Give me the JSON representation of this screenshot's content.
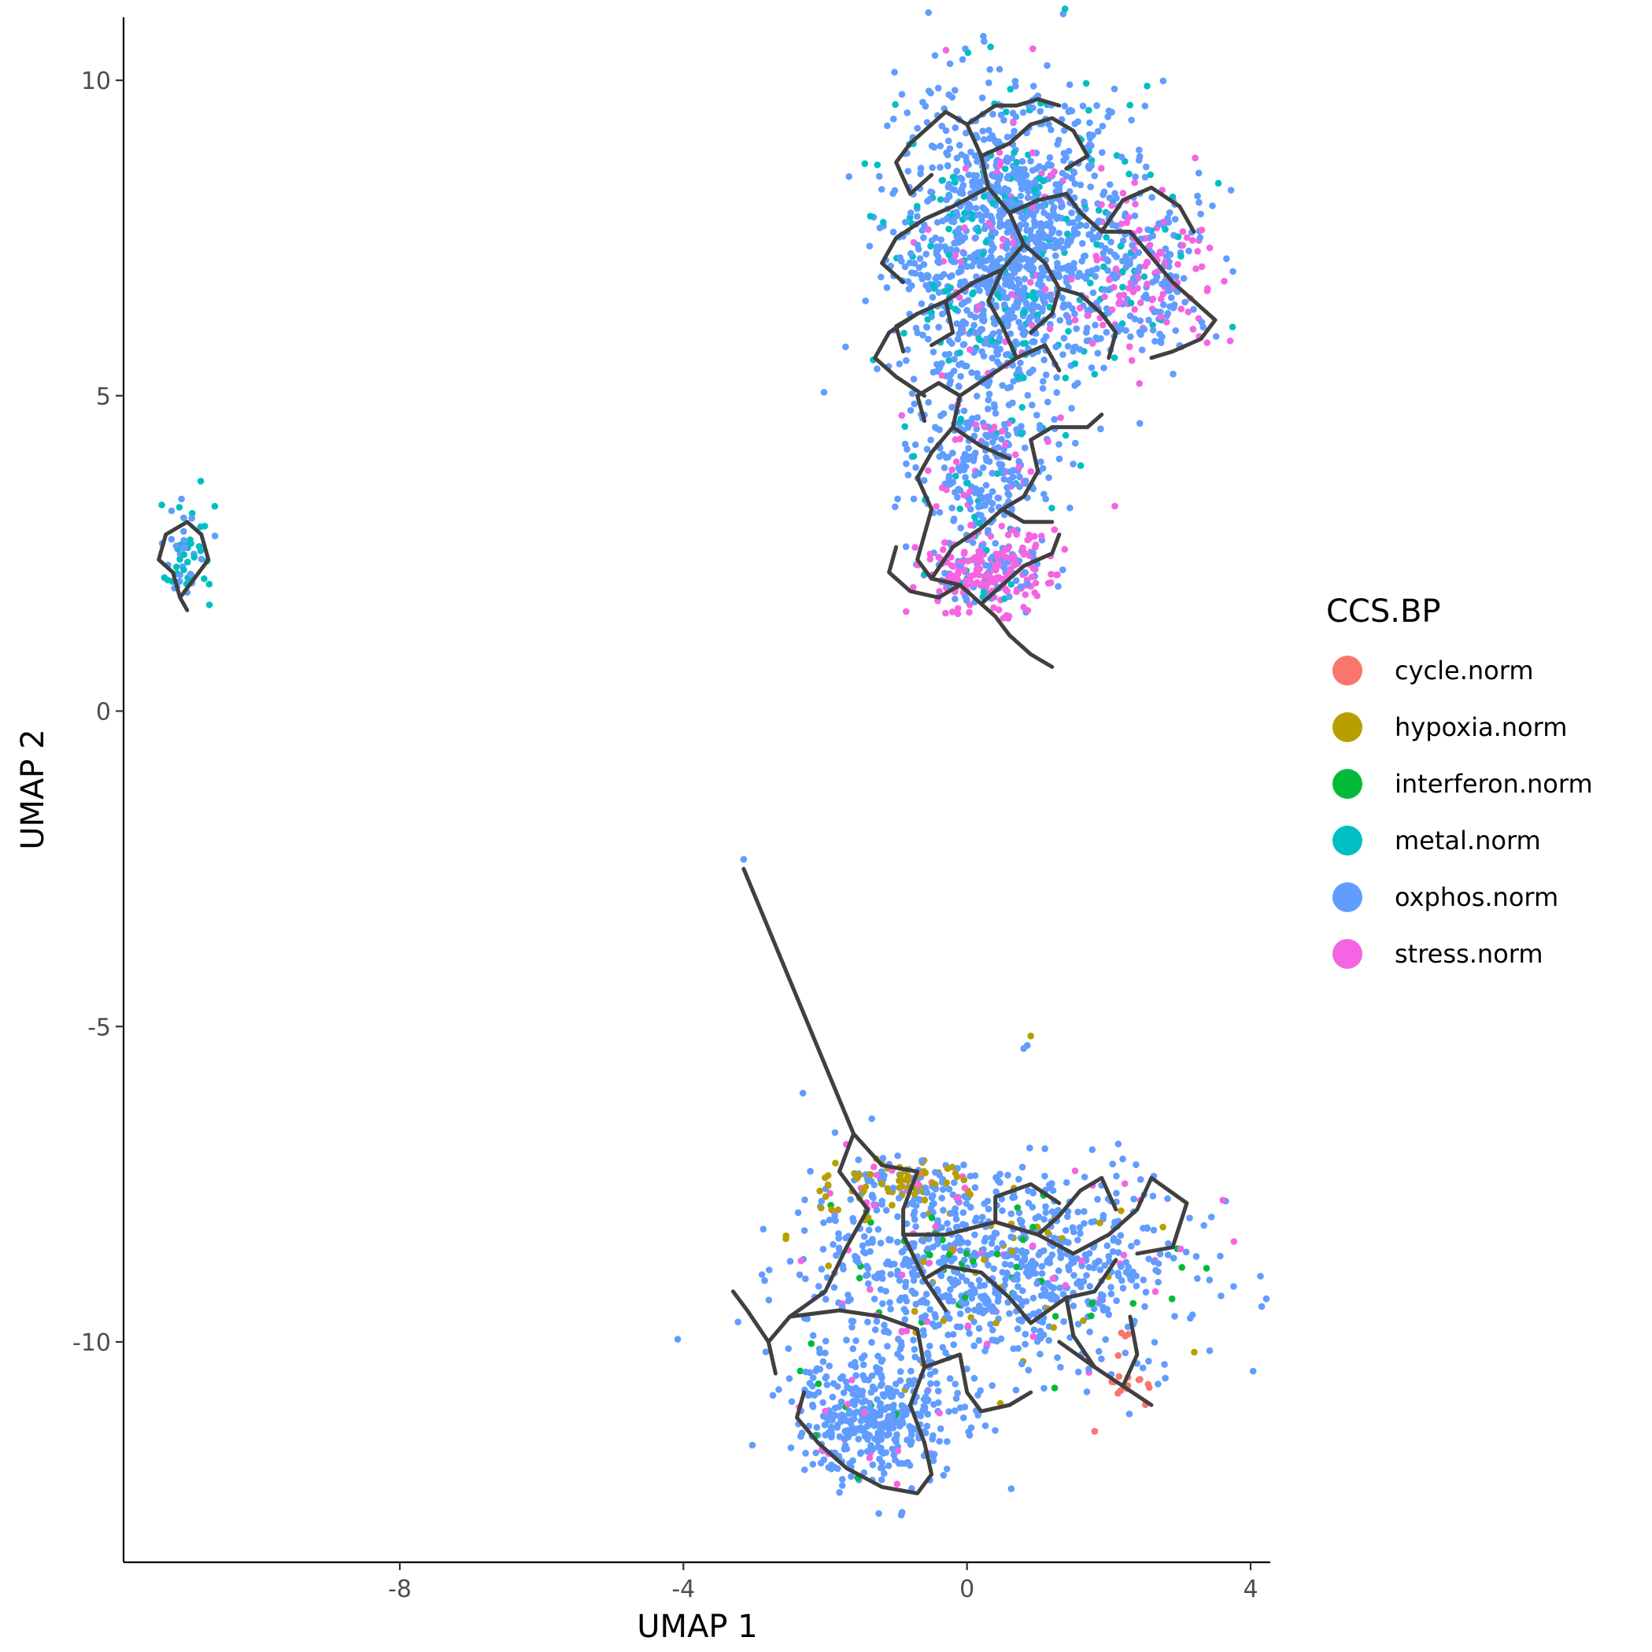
{
  "chart_data": {
    "type": "scatter",
    "title": "",
    "xlabel": "UMAP 1",
    "ylabel": "UMAP 2",
    "xlim": [
      -11.9,
      4.3
    ],
    "ylim": [
      -13.5,
      11
    ],
    "xticks": [
      -8,
      -4,
      0,
      4
    ],
    "xtick_labels": [
      "-8",
      "-4",
      "0",
      "4"
    ],
    "yticks": [
      -10,
      -5,
      0,
      5,
      10
    ],
    "ytick_labels": [
      "-10",
      "-5",
      "0",
      "5",
      "10"
    ],
    "legend": {
      "title": "CCS.BP",
      "position": "right",
      "entries": [
        {
          "name": "cycle.norm",
          "color": "#F8766D"
        },
        {
          "name": "hypoxia.norm",
          "color": "#B79F00"
        },
        {
          "name": "interferon.norm",
          "color": "#00BA38"
        },
        {
          "name": "metal.norm",
          "color": "#00BFC4"
        },
        {
          "name": "oxphos.norm",
          "color": "#619CFF"
        },
        {
          "name": "stress.norm",
          "color": "#F564E3"
        }
      ]
    },
    "trajectory_color": "#404040",
    "clusters": [
      {
        "name": "small-left",
        "center": [
          -11.0,
          2.5
        ],
        "rx": 0.35,
        "ry": 0.7,
        "n": 60,
        "mix": {
          "oxphos.norm": 0.45,
          "metal.norm": 0.55
        }
      },
      {
        "name": "upper-main",
        "center": [
          0.6,
          7.3
        ],
        "rx": 1.4,
        "ry": 2.4,
        "n": 1400,
        "mix": {
          "oxphos.norm": 0.82,
          "metal.norm": 0.12,
          "stress.norm": 0.06
        }
      },
      {
        "name": "upper-right-lobe",
        "center": [
          2.6,
          7.0
        ],
        "rx": 0.9,
        "ry": 1.2,
        "n": 260,
        "mix": {
          "oxphos.norm": 0.55,
          "stress.norm": 0.35,
          "metal.norm": 0.1
        }
      },
      {
        "name": "upper-neck",
        "center": [
          0.2,
          3.8
        ],
        "rx": 0.8,
        "ry": 1.1,
        "n": 260,
        "mix": {
          "oxphos.norm": 0.8,
          "stress.norm": 0.12,
          "metal.norm": 0.08
        }
      },
      {
        "name": "upper-bottom-stress",
        "center": [
          0.3,
          2.2
        ],
        "rx": 0.9,
        "ry": 0.55,
        "n": 260,
        "mix": {
          "stress.norm": 0.7,
          "oxphos.norm": 0.25,
          "metal.norm": 0.05
        }
      },
      {
        "name": "lower-main",
        "center": [
          0.3,
          -8.8
        ],
        "rx": 2.4,
        "ry": 1.4,
        "n": 900,
        "mix": {
          "oxphos.norm": 0.86,
          "hypoxia.norm": 0.05,
          "stress.norm": 0.05,
          "interferon.norm": 0.04
        }
      },
      {
        "name": "lower-top-hypoxia",
        "center": [
          -1.0,
          -7.5
        ],
        "rx": 0.9,
        "ry": 0.4,
        "n": 120,
        "mix": {
          "hypoxia.norm": 0.55,
          "oxphos.norm": 0.35,
          "stress.norm": 0.1
        }
      },
      {
        "name": "lower-left-bottom",
        "center": [
          -1.3,
          -11.2
        ],
        "rx": 1.1,
        "ry": 0.9,
        "n": 420,
        "mix": {
          "oxphos.norm": 0.94,
          "stress.norm": 0.03,
          "interferon.norm": 0.03
        }
      },
      {
        "name": "lower-right-cycle",
        "center": [
          2.3,
          -10.5
        ],
        "rx": 0.4,
        "ry": 0.6,
        "n": 25,
        "mix": {
          "cycle.norm": 0.7,
          "oxphos.norm": 0.3
        }
      }
    ],
    "trajectories": [
      [
        [
          -3.15,
          -2.5
        ],
        [
          -1.6,
          -6.7
        ],
        [
          -1.2,
          -7.2
        ],
        [
          -0.7,
          -7.3
        ]
      ],
      [
        [
          -1.6,
          -6.7
        ],
        [
          -1.8,
          -7.3
        ],
        [
          -1.4,
          -7.9
        ],
        [
          -1.7,
          -8.5
        ],
        [
          -2.0,
          -9.2
        ]
      ],
      [
        [
          -0.7,
          -7.3
        ],
        [
          -0.9,
          -7.9
        ],
        [
          -0.9,
          -8.3
        ],
        [
          -0.6,
          -9.0
        ],
        [
          -0.3,
          -9.5
        ]
      ],
      [
        [
          -0.9,
          -8.3
        ],
        [
          -0.3,
          -8.3
        ],
        [
          0.4,
          -8.1
        ],
        [
          1.0,
          -8.3
        ],
        [
          1.5,
          -8.6
        ]
      ],
      [
        [
          0.4,
          -8.1
        ],
        [
          0.4,
          -7.7
        ],
        [
          0.9,
          -7.5
        ],
        [
          1.3,
          -7.8
        ]
      ],
      [
        [
          1.5,
          -8.6
        ],
        [
          2.0,
          -8.3
        ],
        [
          2.4,
          -7.9
        ],
        [
          2.6,
          -7.4
        ],
        [
          3.1,
          -7.8
        ],
        [
          2.9,
          -8.5
        ],
        [
          2.4,
          -8.6
        ]
      ],
      [
        [
          1.0,
          -8.3
        ],
        [
          1.3,
          -8.0
        ],
        [
          1.6,
          -7.6
        ],
        [
          1.9,
          -7.4
        ],
        [
          2.1,
          -7.9
        ]
      ],
      [
        [
          -0.6,
          -9.0
        ],
        [
          -0.3,
          -8.8
        ],
        [
          0.2,
          -8.9
        ],
        [
          0.6,
          -9.3
        ],
        [
          0.9,
          -9.7
        ],
        [
          1.4,
          -9.3
        ],
        [
          1.8,
          -9.2
        ],
        [
          2.1,
          -8.7
        ]
      ],
      [
        [
          -2.0,
          -9.2
        ],
        [
          -2.5,
          -9.6
        ],
        [
          -2.8,
          -10.0
        ],
        [
          -2.7,
          -10.5
        ]
      ],
      [
        [
          -2.8,
          -10.0
        ],
        [
          -3.1,
          -9.5
        ],
        [
          -3.3,
          -9.2
        ]
      ],
      [
        [
          -2.5,
          -9.6
        ],
        [
          -1.8,
          -9.5
        ],
        [
          -1.2,
          -9.6
        ],
        [
          -0.7,
          -9.8
        ],
        [
          -0.6,
          -10.4
        ],
        [
          -0.8,
          -11.0
        ],
        [
          -0.6,
          -11.6
        ]
      ],
      [
        [
          -0.6,
          -11.6
        ],
        [
          -0.5,
          -12.1
        ],
        [
          -0.7,
          -12.4
        ],
        [
          -1.2,
          -12.3
        ],
        [
          -1.7,
          -12.0
        ],
        [
          -2.1,
          -11.6
        ],
        [
          -2.4,
          -11.2
        ],
        [
          -2.3,
          -10.8
        ]
      ],
      [
        [
          -0.6,
          -10.4
        ],
        [
          -0.1,
          -10.2
        ],
        [
          0.0,
          -10.8
        ],
        [
          0.2,
          -11.1
        ],
        [
          0.6,
          -11.0
        ],
        [
          0.9,
          -10.8
        ]
      ],
      [
        [
          1.4,
          -9.3
        ],
        [
          1.5,
          -9.9
        ],
        [
          1.8,
          -10.4
        ],
        [
          2.2,
          -10.7
        ],
        [
          2.4,
          -10.2
        ],
        [
          2.3,
          -9.6
        ]
      ],
      [
        [
          2.2,
          -10.7
        ],
        [
          2.6,
          -11.0
        ]
      ],
      [
        [
          1.8,
          -10.4
        ],
        [
          1.3,
          -10.0
        ]
      ],
      [
        [
          -11.1,
          1.8
        ],
        [
          -11.2,
          2.2
        ],
        [
          -11.4,
          2.4
        ],
        [
          -11.3,
          2.8
        ],
        [
          -11.0,
          3.0
        ],
        [
          -10.8,
          2.8
        ],
        [
          -10.7,
          2.4
        ],
        [
          -10.9,
          2.1
        ],
        [
          -11.1,
          1.8
        ],
        [
          -11.0,
          1.6
        ]
      ],
      [
        [
          1.2,
          0.7
        ],
        [
          0.9,
          0.9
        ],
        [
          0.6,
          1.2
        ],
        [
          0.4,
          1.5
        ],
        [
          0.2,
          1.7
        ],
        [
          -0.1,
          2.0
        ],
        [
          -0.5,
          2.1
        ],
        [
          -0.7,
          2.4
        ],
        [
          -0.6,
          2.8
        ]
      ],
      [
        [
          -0.6,
          2.8
        ],
        [
          -0.5,
          3.2
        ],
        [
          -0.7,
          3.7
        ],
        [
          -0.5,
          4.1
        ],
        [
          -0.2,
          4.5
        ],
        [
          -0.1,
          5.0
        ],
        [
          -0.4,
          5.2
        ],
        [
          -0.7,
          5.0
        ],
        [
          -0.6,
          4.6
        ]
      ],
      [
        [
          -0.1,
          5.0
        ],
        [
          0.3,
          5.3
        ],
        [
          0.7,
          5.6
        ],
        [
          1.1,
          5.8
        ],
        [
          1.3,
          5.4
        ]
      ],
      [
        [
          0.2,
          1.7
        ],
        [
          0.5,
          2.0
        ],
        [
          0.8,
          2.3
        ],
        [
          1.2,
          2.5
        ],
        [
          1.3,
          2.8
        ]
      ],
      [
        [
          -0.5,
          2.1
        ],
        [
          -0.2,
          2.6
        ],
        [
          0.2,
          2.9
        ],
        [
          0.5,
          3.2
        ],
        [
          0.8,
          3.4
        ],
        [
          1.0,
          3.8
        ],
        [
          0.9,
          4.3
        ],
        [
          1.2,
          4.5
        ],
        [
          1.7,
          4.5
        ],
        [
          1.9,
          4.7
        ]
      ],
      [
        [
          0.5,
          3.2
        ],
        [
          0.8,
          3.0
        ],
        [
          1.2,
          3.0
        ]
      ],
      [
        [
          -0.2,
          4.5
        ],
        [
          0.2,
          4.2
        ],
        [
          0.6,
          4.0
        ]
      ],
      [
        [
          0.7,
          5.6
        ],
        [
          0.5,
          6.1
        ],
        [
          0.3,
          6.5
        ],
        [
          0.5,
          7.0
        ],
        [
          0.8,
          7.4
        ],
        [
          0.6,
          7.9
        ],
        [
          0.3,
          8.3
        ],
        [
          0.2,
          8.8
        ],
        [
          0.0,
          9.3
        ],
        [
          -0.3,
          9.5
        ],
        [
          -0.5,
          9.3
        ]
      ],
      [
        [
          0.5,
          7.0
        ],
        [
          0.1,
          6.8
        ],
        [
          -0.3,
          6.5
        ],
        [
          -0.7,
          6.3
        ],
        [
          -1.0,
          6.1
        ],
        [
          -0.9,
          5.7
        ]
      ],
      [
        [
          -0.3,
          6.5
        ],
        [
          -0.2,
          6.0
        ],
        [
          -0.5,
          5.8
        ]
      ],
      [
        [
          0.8,
          7.4
        ],
        [
          1.1,
          7.1
        ],
        [
          1.3,
          6.7
        ],
        [
          1.6,
          6.6
        ],
        [
          1.9,
          6.3
        ],
        [
          2.1,
          6.0
        ],
        [
          2.0,
          5.6
        ]
      ],
      [
        [
          1.3,
          6.7
        ],
        [
          1.2,
          6.3
        ],
        [
          0.9,
          6.0
        ]
      ],
      [
        [
          0.6,
          7.9
        ],
        [
          1.0,
          8.1
        ],
        [
          1.4,
          8.2
        ],
        [
          1.6,
          7.9
        ],
        [
          1.9,
          7.6
        ],
        [
          2.3,
          7.6
        ],
        [
          2.6,
          7.2
        ],
        [
          2.9,
          6.8
        ],
        [
          3.2,
          6.5
        ],
        [
          3.5,
          6.2
        ],
        [
          3.3,
          5.9
        ],
        [
          2.9,
          5.7
        ],
        [
          2.6,
          5.6
        ]
      ],
      [
        [
          1.9,
          7.6
        ],
        [
          2.2,
          8.1
        ],
        [
          2.6,
          8.3
        ],
        [
          3.0,
          8.0
        ],
        [
          3.2,
          7.6
        ]
      ],
      [
        [
          0.3,
          8.3
        ],
        [
          -0.2,
          8.0
        ],
        [
          -0.6,
          7.8
        ],
        [
          -1.0,
          7.5
        ],
        [
          -1.2,
          7.1
        ],
        [
          -0.9,
          6.8
        ]
      ],
      [
        [
          0.2,
          8.8
        ],
        [
          0.6,
          9.0
        ],
        [
          0.9,
          9.3
        ],
        [
          1.2,
          9.4
        ],
        [
          1.5,
          9.2
        ],
        [
          1.7,
          8.8
        ],
        [
          1.4,
          8.6
        ]
      ],
      [
        [
          0.0,
          9.3
        ],
        [
          0.4,
          9.6
        ],
        [
          0.7,
          9.6
        ],
        [
          1.0,
          9.7
        ],
        [
          1.3,
          9.6
        ]
      ],
      [
        [
          -0.5,
          9.3
        ],
        [
          -0.8,
          9.0
        ],
        [
          -1.0,
          8.7
        ],
        [
          -0.8,
          8.2
        ],
        [
          -0.5,
          8.5
        ]
      ],
      [
        [
          -0.7,
          6.3
        ],
        [
          -1.1,
          6.0
        ],
        [
          -1.3,
          5.6
        ],
        [
          -1.0,
          5.3
        ],
        [
          -0.6,
          5.0
        ]
      ],
      [
        [
          -0.1,
          2.0
        ],
        [
          -0.4,
          1.8
        ],
        [
          -0.8,
          1.9
        ],
        [
          -1.1,
          2.2
        ],
        [
          -1.0,
          2.6
        ]
      ]
    ]
  }
}
